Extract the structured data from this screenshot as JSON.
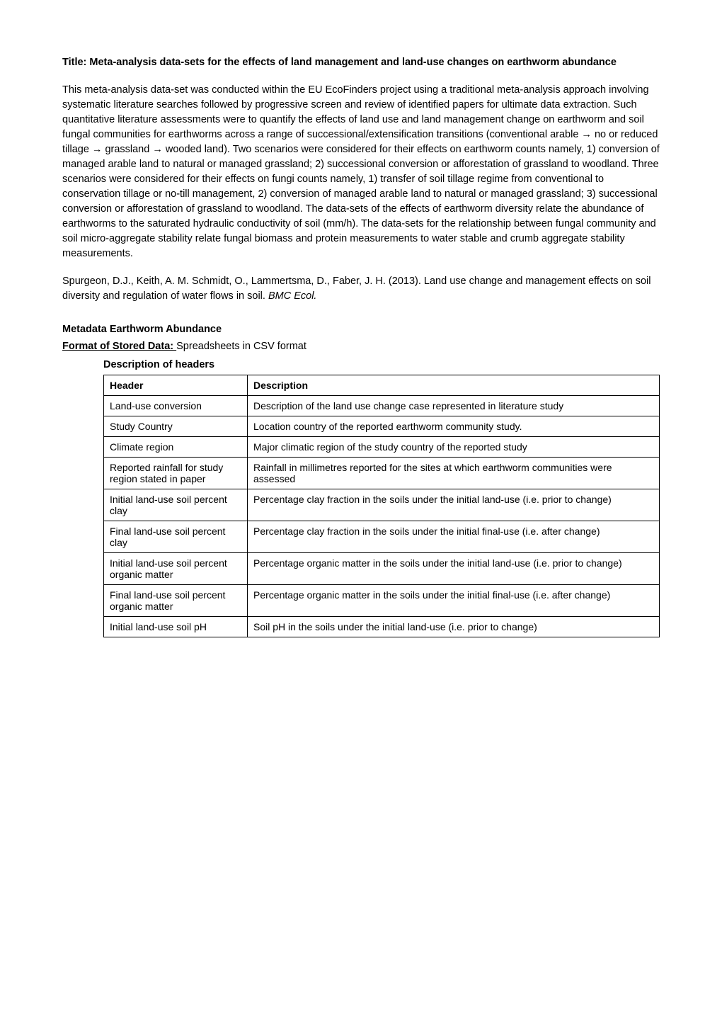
{
  "title": {
    "prefix": "Title:",
    "text": "Meta-analysis data-sets for the effects of land management and land-use changes on earthworm abundance"
  },
  "paragraph1": "This meta-analysis data-set was conducted within the EU EcoFinders project using a traditional meta-analysis approach involving systematic literature searches followed by progressive screen and review of identified papers for ultimate data extraction. Such quantitative literature assessments were to quantify the effects of land use and land management change on earthworm and soil fungal communities for earthworms across a range of successional/extensification transitions (conventional arable → no or reduced tillage → grassland → wooded land). Two scenarios were considered for their effects on earthworm counts namely, 1) conversion of managed arable land to natural or managed grassland; 2) successional conversion or afforestation of grassland to woodland. Three scenarios were considered for their effects on fungi counts namely, 1) transfer of soil tillage regime from conventional to conservation tillage or no-till management, 2) conversion of managed arable land to natural or managed grassland; 3) successional conversion or afforestation of grassland to woodland. The data-sets of the effects of earthworm diversity relate the abundance of earthworms to the saturated hydraulic conductivity of soil (mm/h). The data-sets for the relationship between fungal community and soil micro-aggregate stability relate fungal biomass and protein measurements to water stable and crumb aggregate stability measurements.",
  "citation": {
    "text": "Spurgeon, D.J., Keith, A. M. Schmidt, O., Lammertsma, D., Faber, J. H. (2013). Land use change and management effects on soil diversity and regulation of water flows in soil. ",
    "journal": "BMC Ecol."
  },
  "metadata_heading": "Metadata Earthworm Abundance",
  "format_line": {
    "label": "Format of Stored Data: ",
    "value": "Spreadsheets in CSV format"
  },
  "table_heading": "Description of headers",
  "table": {
    "col1": "Header",
    "col2": "Description",
    "rows": [
      {
        "h": "Land-use conversion",
        "d": "Description of the land use change case represented in literature study"
      },
      {
        "h": "Study Country",
        "d": "Location country of the reported earthworm community study."
      },
      {
        "h": "Climate region",
        "d": "Major climatic region of the study country of the reported study"
      },
      {
        "h": "Reported rainfall for study region stated in paper",
        "d": "Rainfall in millimetres reported for the sites at which earthworm communities were assessed"
      },
      {
        "h": "Initial land-use soil percent clay",
        "d": "Percentage clay fraction in the soils under the initial land-use (i.e. prior to change)"
      },
      {
        "h": "Final land-use soil percent clay",
        "d": "Percentage clay fraction in the soils under the initial final-use (i.e. after change)"
      },
      {
        "h": "Initial land-use soil percent organic matter",
        "d": "Percentage organic matter in the soils under the initial land-use (i.e. prior to change)"
      },
      {
        "h": "Final land-use soil percent organic matter",
        "d": "Percentage organic matter in the soils under the initial final-use (i.e. after change)"
      },
      {
        "h": "Initial land-use soil pH",
        "d": "Soil pH  in the soils under the initial land-use (i.e. prior to change)"
      }
    ]
  }
}
